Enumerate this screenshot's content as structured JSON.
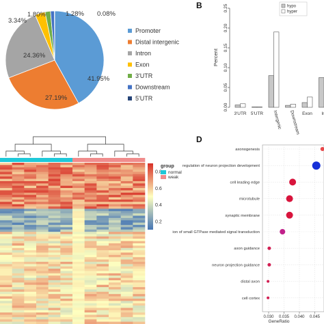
{
  "panels": {
    "b": "B",
    "d": "D"
  },
  "chart_data": [
    {
      "type": "pie",
      "labels": [
        "Promoter",
        "Distal intergenic",
        "Intron",
        "Exon",
        "3'UTR",
        "Downstream",
        "5'UTR"
      ],
      "values": [
        41.95,
        27.19,
        24.36,
        3.34,
        1.8,
        1.28,
        0.08
      ],
      "value_labels": [
        "41.95%",
        "27.19%",
        "24.36%",
        "3.34%",
        "1.80%",
        "1.28%",
        "0.08%"
      ],
      "colors": [
        "#5b9bd5",
        "#ed7d31",
        "#a5a5a5",
        "#ffc000",
        "#70ad47",
        "#4472c4",
        "#264478"
      ],
      "legend_position": "right"
    },
    {
      "type": "bar",
      "ylabel": "Percent",
      "categories": [
        "3'UTR",
        "5'UTR",
        "Intergenic",
        "Downstream",
        "Exon",
        "Int"
      ],
      "series": [
        {
          "name": "hypo",
          "values": [
            0.006,
            0.001,
            0.08,
            0.005,
            0.012,
            0.075
          ],
          "color": "#c8c8c8"
        },
        {
          "name": "hyper",
          "values": [
            0.009,
            0.001,
            0.19,
            0.008,
            0.026,
            0.0
          ],
          "color": "#ffffff"
        }
      ],
      "ylim": [
        0,
        0.25
      ],
      "yticks": [
        "0.00",
        "0.05",
        "0.10",
        "0.15",
        "0.20",
        "0.25"
      ],
      "legend_position": "top-right"
    },
    {
      "type": "heatmap",
      "legend_title": "group",
      "groups": [
        {
          "name": "normal",
          "color": "#1fc8d8"
        },
        {
          "name": "weak",
          "color": "#f08c8c"
        }
      ],
      "colorbar_ticks": [
        "0.8",
        "0.6",
        "0.4",
        "0.2"
      ],
      "colorbar_range": [
        0.1,
        0.9
      ],
      "n_columns": 12,
      "n_rows": 70
    },
    {
      "type": "scatter",
      "xlabel": "GeneRatio",
      "xticks": [
        "0.030",
        "0.035",
        "0.040",
        "0.045"
      ],
      "xlim": [
        0.028,
        0.048
      ],
      "categories": [
        "axonogenesis",
        "regulation of neuron projection development",
        "cell leading edge",
        "microtubule",
        "synaptic membrane",
        "ion of small GTPase mediated signal transduction",
        "axon guidance",
        "neuron projection guidance",
        "distal axon",
        "cell cortex"
      ],
      "x": [
        0.0475,
        0.0455,
        0.0378,
        0.0368,
        0.0368,
        0.0345,
        0.0302,
        0.0302,
        0.0298,
        0.0298
      ],
      "sizes": [
        3,
        6,
        5,
        5,
        5,
        4,
        2.5,
        2.5,
        2,
        2
      ],
      "colors": [
        "#e8484a",
        "#1630d8",
        "#d8143c",
        "#d8143c",
        "#d8143c",
        "#c0208a",
        "#d21e52",
        "#d21e52",
        "#d21e52",
        "#d21e52"
      ]
    }
  ]
}
